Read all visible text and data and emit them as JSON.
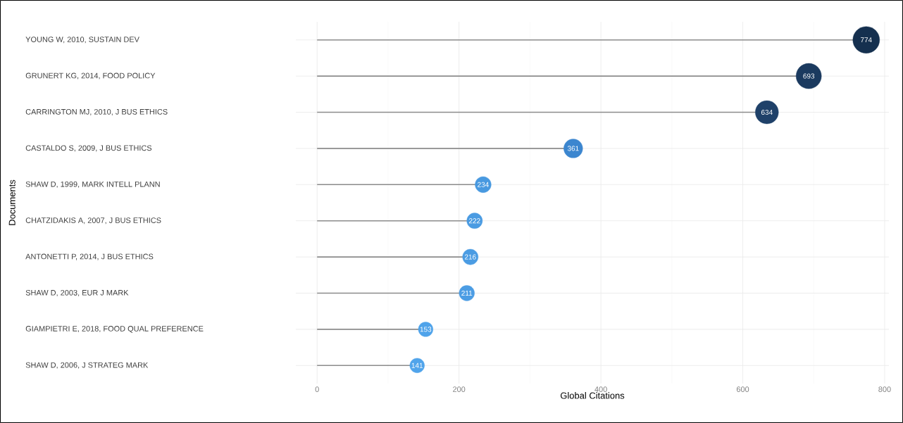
{
  "chart_data": {
    "type": "lollipop",
    "orientation": "horizontal",
    "xlabel": "Global Citations",
    "ylabel": "Documents",
    "categories": [
      "YOUNG W, 2010, SUSTAIN DEV",
      "GRUNERT KG, 2014, FOOD POLICY",
      "CARRINGTON MJ, 2010, J BUS ETHICS",
      "CASTALDO S, 2009, J BUS ETHICS",
      "SHAW D, 1999, MARK INTELL PLANN",
      "CHATZIDAKIS A, 2007, J BUS ETHICS",
      "ANTONETTI P, 2014, J BUS ETHICS",
      "SHAW D, 2003, EUR J MARK",
      "GIAMPIETRI E, 2018, FOOD QUAL PREFERENCE",
      "SHAW D, 2006, J STRATEG MARK"
    ],
    "values": [
      774,
      693,
      634,
      361,
      234,
      222,
      216,
      211,
      153,
      141
    ],
    "sizes": [
      1,
      0.9,
      0.75,
      0.5,
      0.36,
      0.34,
      0.34,
      0.33,
      0.3,
      0.3
    ],
    "colors": [
      "#15304f",
      "#1b3a5f",
      "#1f4169",
      "#3c86cf",
      "#4899e0",
      "#4a9be2",
      "#4b9ce3",
      "#4c9de4",
      "#4fa3ea",
      "#50a4eb"
    ],
    "xlim": [
      -30,
      806
    ],
    "xticks": [
      0,
      200,
      400,
      600,
      800
    ],
    "grid": true,
    "marker": "circle",
    "data_labels": true
  }
}
